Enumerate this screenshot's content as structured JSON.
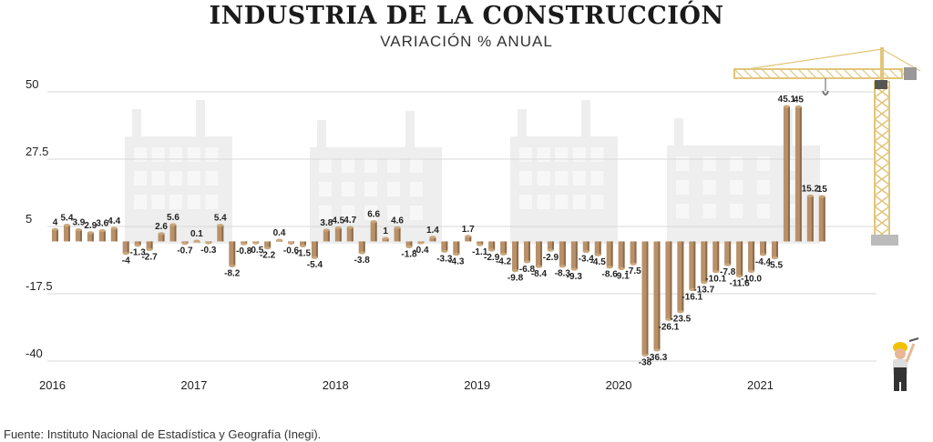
{
  "colors": {
    "bar_top": "#c9a77c",
    "bar_body": "#b8916a",
    "bar_side": "#8f6b47",
    "grid": "#d8d8d8",
    "crane": "#e2c57a",
    "buildings": "#eeeeee",
    "text": "#222222"
  },
  "icons": [
    "tower-crane-icon",
    "construction-worker-icon",
    "factory-buildings-icon"
  ],
  "chart_data": {
    "type": "bar",
    "title": "INDUSTRIA DE LA CONSTRUCCIÓN",
    "subtitle": "VARIACIÓN % ANUAL",
    "xlabel": "",
    "ylabel": "",
    "ylim": [
      -40,
      50
    ],
    "yticks": [
      50,
      27.5,
      5,
      -17.5,
      -40
    ],
    "ytick_labels": [
      "50",
      "27.5",
      "5",
      "-17.5",
      "-40"
    ],
    "grid": true,
    "legend": "none",
    "year_labels": [
      {
        "label": "2016",
        "start_index": 0
      },
      {
        "label": "2017",
        "start_index": 12
      },
      {
        "label": "2018",
        "start_index": 24
      },
      {
        "label": "2019",
        "start_index": 36
      },
      {
        "label": "2020",
        "start_index": 48
      },
      {
        "label": "2021",
        "start_index": 60
      }
    ],
    "values": [
      4,
      5.4,
      3.9,
      2.9,
      3.6,
      4.4,
      -4,
      -1.3,
      -2.7,
      2.6,
      5.6,
      -0.7,
      0.1,
      -0.3,
      5.4,
      -8.2,
      -0.8,
      -0.5,
      -2.2,
      0.4,
      -0.6,
      -1.5,
      -5.4,
      3.8,
      4.5,
      4.7,
      -3.8,
      6.6,
      1,
      4.6,
      -1.8,
      -0.4,
      1.4,
      -3.3,
      -4.3,
      1.7,
      -1.1,
      -2.9,
      -4.2,
      -9.8,
      -6.8,
      -8.4,
      -2.9,
      -8.3,
      -9.3,
      -3.4,
      -4.5,
      -8.6,
      -9.1,
      -7.5,
      -38,
      -36.3,
      -26.1,
      -23.5,
      -16.1,
      -13.7,
      -10.1,
      -7.8,
      -11.6,
      -10.0,
      -4.4,
      -5.5,
      45.1,
      45,
      15.2,
      15
    ],
    "data_labels": [
      "4",
      "5.4",
      "3.9",
      "2.9",
      "3.6",
      "4.4",
      "-4",
      "-1.3",
      "-2.7",
      "2.6",
      "5.6",
      "-0.7",
      "0.1",
      "-0.3",
      "5.4",
      "-8.2",
      "-0.8",
      "-0.5",
      "-2.2",
      "0.4",
      "-0.6",
      "-1.5",
      "-5.4",
      "3.8",
      "4.5",
      "4.7",
      "-3.8",
      "6.6",
      "1",
      "4.6",
      "-1.8",
      "-0.4",
      "1.4",
      "-3.3",
      "-4.3",
      "1.7",
      "-1.1",
      "-2.9",
      "-4.2",
      "-9.8",
      "-6.8",
      "-8.4",
      "-2.9",
      "-8.3",
      "-9.3",
      "-3.4",
      "-4.5",
      "-8.6",
      "-9.1",
      "-7.5",
      "-38",
      "-36.3",
      "-26.1",
      "-23.5",
      "-16.1",
      "-13.7",
      "-10.1",
      "-7.8",
      "-11.6",
      "-10.0",
      "-4.4",
      "-5.5",
      "45.1",
      "45",
      "15.2",
      "15"
    ]
  },
  "source": "Fuente: Instituto Nacional de Estadística y Geografía (Inegi)."
}
